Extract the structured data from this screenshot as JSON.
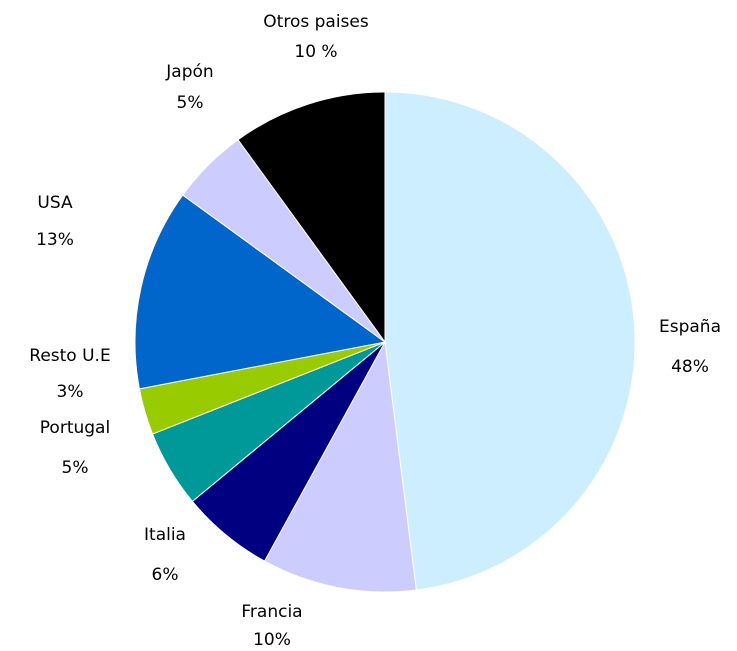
{
  "chart_data": {
    "type": "pie",
    "categories": [
      "España",
      "Francia",
      "Italia",
      "Portugal",
      "Resto U.E",
      "USA",
      "Japón",
      "Otros paises"
    ],
    "values": [
      48,
      10,
      6,
      5,
      3,
      13,
      5,
      10
    ],
    "value_labels": [
      "48%",
      "10%",
      "6%",
      "5%",
      "3%",
      "13%",
      "5%",
      "10 %"
    ],
    "colors": [
      "#cceeff",
      "#ccccff",
      "#000080",
      "#009999",
      "#99cc00",
      "#0066cc",
      "#ccccff",
      "#000000"
    ]
  }
}
